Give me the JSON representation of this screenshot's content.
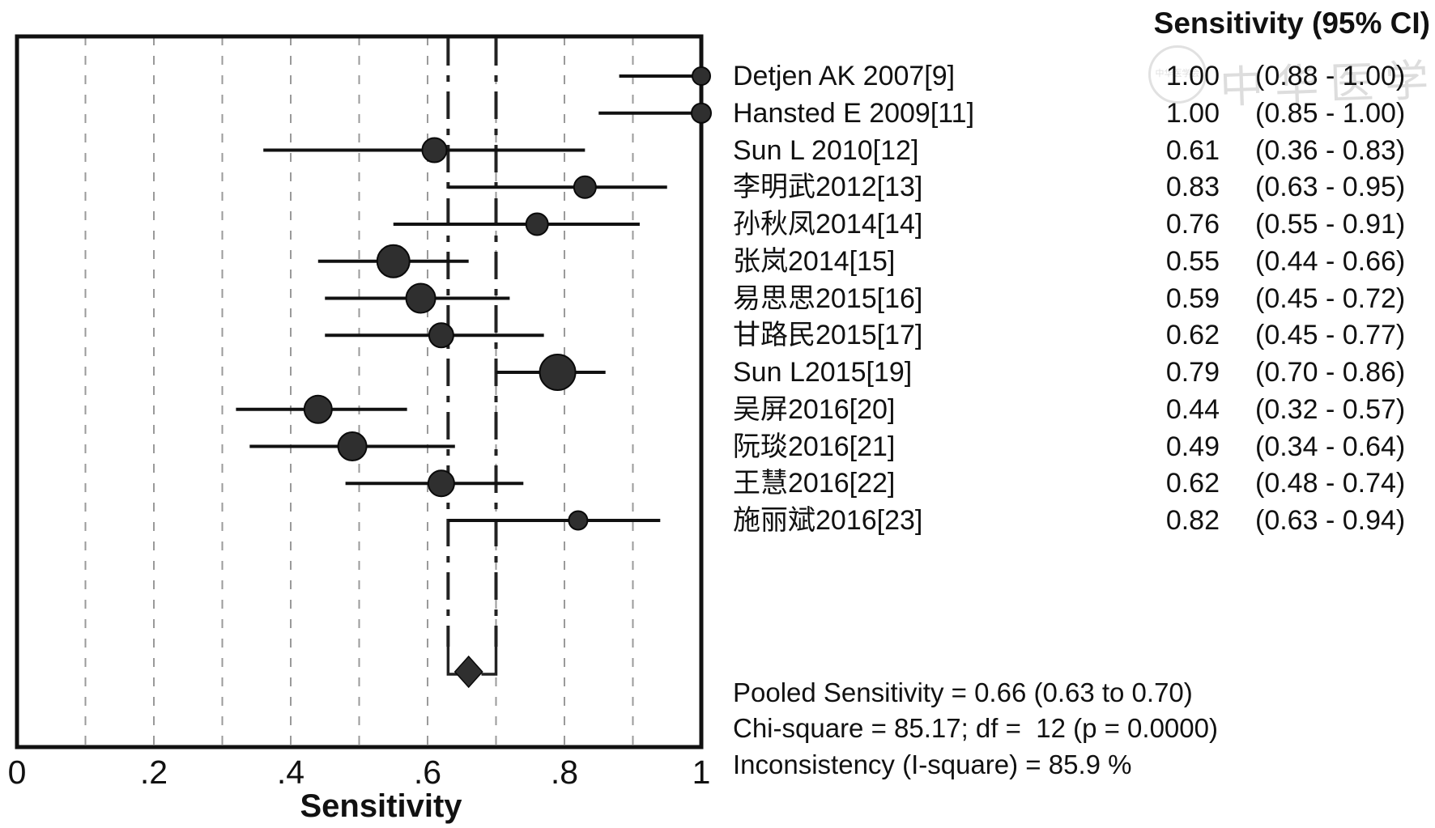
{
  "right_panel": {
    "header": "Sensitivity (95% CI)",
    "stats": [
      "Pooled Sensitivity = 0.66 (0.63 to 0.70)",
      "Chi-square = 85.17; df =  12 (p = 0.0000)",
      "Inconsistency (I-square) = 85.9 %"
    ]
  },
  "watermark": {
    "seal_text": "中华医学会",
    "text": "中华医学会"
  },
  "colors": {
    "marker": "#2f2f2f",
    "marker_edge": "#0a0a0a",
    "ci_line": "#111111",
    "box": "#111111",
    "grid": "#9a9a9a",
    "pooled_line": "#222222",
    "diamond": "#2f2f2f",
    "text": "#111111",
    "watermark": "#bdbdbd"
  },
  "chart_data": {
    "type": "scatter",
    "subtype": "forest-plot",
    "title": "",
    "xlabel": "Sensitivity",
    "ylabel": "",
    "xlim": [
      0,
      1
    ],
    "grid": "vertical-dashed-every-0.1",
    "xticks": [
      {
        "v": 0.0,
        "label": "0"
      },
      {
        "v": 0.2,
        "label": ".2"
      },
      {
        "v": 0.4,
        "label": ".4"
      },
      {
        "v": 0.6,
        "label": ".6"
      },
      {
        "v": 0.8,
        "label": ".8"
      },
      {
        "v": 1.0,
        "label": "1"
      }
    ],
    "gridline_values": [
      0.1,
      0.2,
      0.3,
      0.4,
      0.5,
      0.6,
      0.7,
      0.8,
      0.9
    ],
    "studies": [
      {
        "name": "Detjen AK 2007[9]",
        "sensitivity_label": "1.00",
        "ci_label": "(0.88 - 1.00)",
        "value": 1.0,
        "ci_low": 0.88,
        "ci_high": 1.0,
        "marker_radius": 11
      },
      {
        "name": "Hansted E 2009[11]",
        "sensitivity_label": "1.00",
        "ci_label": "(0.85 - 1.00)",
        "value": 1.0,
        "ci_low": 0.85,
        "ci_high": 1.0,
        "marker_radius": 12
      },
      {
        "name": "Sun L 2010[12]",
        "sensitivity_label": "0.61",
        "ci_label": "(0.36 - 0.83)",
        "value": 0.61,
        "ci_low": 0.36,
        "ci_high": 0.83,
        "marker_radius": 15
      },
      {
        "name": "李明武2012[13]",
        "sensitivity_label": "0.83",
        "ci_label": "(0.63 - 0.95)",
        "value": 0.83,
        "ci_low": 0.63,
        "ci_high": 0.95,
        "marker_radius": 13.5
      },
      {
        "name": "孙秋凤2014[14]",
        "sensitivity_label": "0.76",
        "ci_label": "(0.55 - 0.91)",
        "value": 0.76,
        "ci_low": 0.55,
        "ci_high": 0.91,
        "marker_radius": 13.5
      },
      {
        "name": "张岚2014[15]",
        "sensitivity_label": "0.55",
        "ci_label": "(0.44 - 0.66)",
        "value": 0.55,
        "ci_low": 0.44,
        "ci_high": 0.66,
        "marker_radius": 20
      },
      {
        "name": "易思思2015[16]",
        "sensitivity_label": "0.59",
        "ci_label": "(0.45 - 0.72)",
        "value": 0.59,
        "ci_low": 0.45,
        "ci_high": 0.72,
        "marker_radius": 18
      },
      {
        "name": "甘路民2015[17]",
        "sensitivity_label": "0.62",
        "ci_label": "(0.45 - 0.77)",
        "value": 0.62,
        "ci_low": 0.45,
        "ci_high": 0.77,
        "marker_radius": 15
      },
      {
        "name": "Sun L2015[19]",
        "sensitivity_label": "0.79",
        "ci_label": "(0.70 - 0.86)",
        "value": 0.79,
        "ci_low": 0.7,
        "ci_high": 0.86,
        "marker_radius": 22
      },
      {
        "name": "吴屏2016[20]",
        "sensitivity_label": "0.44",
        "ci_label": "(0.32 - 0.57)",
        "value": 0.44,
        "ci_low": 0.32,
        "ci_high": 0.57,
        "marker_radius": 17
      },
      {
        "name": "阮琰2016[21]",
        "sensitivity_label": "0.49",
        "ci_label": "(0.34 - 0.64)",
        "value": 0.49,
        "ci_low": 0.34,
        "ci_high": 0.64,
        "marker_radius": 17.5
      },
      {
        "name": "王慧2016[22]",
        "sensitivity_label": "0.62",
        "ci_label": "(0.48 - 0.74)",
        "value": 0.62,
        "ci_low": 0.48,
        "ci_high": 0.74,
        "marker_radius": 16
      },
      {
        "name": "施丽斌2016[23]",
        "sensitivity_label": "0.82",
        "ci_label": "(0.63 - 0.94)",
        "value": 0.82,
        "ci_low": 0.63,
        "ci_high": 0.94,
        "marker_radius": 11.5
      }
    ],
    "pooled": {
      "label": "Pooled Sensitivity = 0.66 (0.63 to 0.70)",
      "estimate": 0.66,
      "ci_low": 0.63,
      "ci_high": 0.7,
      "chi_square": 85.17,
      "df": 12,
      "p": "0.0000",
      "i_square_pct": 85.9
    }
  }
}
